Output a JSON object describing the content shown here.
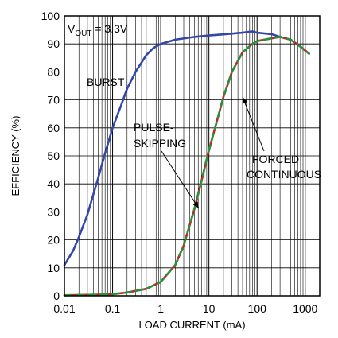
{
  "chart_data": {
    "type": "line",
    "xlabel": "LOAD CURRENT (mA)",
    "ylabel": "EFFICIENCY (%)",
    "xscale": "log",
    "xlim": [
      0.01,
      2000
    ],
    "ylim": [
      0,
      100
    ],
    "xticks": [
      {
        "value": 0.01,
        "label": "0.01"
      },
      {
        "value": 0.1,
        "label": "0.1"
      },
      {
        "value": 1,
        "label": "1"
      },
      {
        "value": 10,
        "label": "10"
      },
      {
        "value": 100,
        "label": "100"
      },
      {
        "value": 1000,
        "label": "1000"
      }
    ],
    "yticks": [
      0,
      10,
      20,
      30,
      40,
      50,
      60,
      70,
      80,
      90,
      100
    ],
    "grid": true,
    "annotations": {
      "vout_main": "V",
      "vout_sub": "OUT",
      "vout_value": " = 3.3V",
      "burst": "BURST",
      "pulse_line1": "PULSE-",
      "pulse_line2": "SKIPPING",
      "forced_line1": "FORCED",
      "forced_line2": "CONTINUOUS"
    },
    "series": [
      {
        "color": "#3347a8",
        "points": [
          [
            0.01,
            11
          ],
          [
            0.015,
            16
          ],
          [
            0.02,
            21
          ],
          [
            0.03,
            29
          ],
          [
            0.05,
            42
          ],
          [
            0.07,
            51
          ],
          [
            0.1,
            60
          ],
          [
            0.15,
            68
          ],
          [
            0.2,
            74
          ],
          [
            0.3,
            80
          ],
          [
            0.5,
            86
          ],
          [
            0.7,
            88.5
          ],
          [
            1,
            90
          ],
          [
            2,
            91.5
          ],
          [
            5,
            92.5
          ],
          [
            10,
            93
          ],
          [
            20,
            93.4
          ],
          [
            50,
            94
          ],
          [
            80,
            94.5
          ],
          [
            100,
            94
          ],
          [
            200,
            93.5
          ],
          [
            300,
            92.5
          ],
          [
            500,
            91.5
          ],
          [
            800,
            89
          ],
          [
            1200,
            86.5
          ]
        ]
      },
      {
        "color": "#cc2020",
        "points": [
          [
            0.01,
            0.2
          ],
          [
            0.05,
            0.4
          ],
          [
            0.1,
            0.6
          ],
          [
            0.2,
            1.2
          ],
          [
            0.5,
            2.5
          ],
          [
            1,
            5
          ],
          [
            2,
            11
          ],
          [
            3,
            18
          ],
          [
            5,
            31
          ],
          [
            7,
            41
          ],
          [
            10,
            52
          ],
          [
            15,
            63
          ],
          [
            20,
            71
          ],
          [
            30,
            80
          ],
          [
            50,
            87
          ],
          [
            80,
            90
          ],
          [
            100,
            91
          ],
          [
            200,
            92
          ],
          [
            300,
            92.5
          ],
          [
            500,
            91.5
          ],
          [
            800,
            89
          ],
          [
            1200,
            86.5
          ]
        ]
      },
      {
        "color": "#2a8f3a",
        "dashed": true,
        "points": [
          [
            0.01,
            0.2
          ],
          [
            0.05,
            0.4
          ],
          [
            0.1,
            0.6
          ],
          [
            0.2,
            1.2
          ],
          [
            0.5,
            2.5
          ],
          [
            1,
            5
          ],
          [
            2,
            11
          ],
          [
            3,
            18
          ],
          [
            5,
            31
          ],
          [
            7,
            41
          ],
          [
            10,
            52
          ],
          [
            15,
            63
          ],
          [
            20,
            71
          ],
          [
            30,
            80
          ],
          [
            50,
            87
          ],
          [
            80,
            90
          ],
          [
            100,
            91
          ],
          [
            200,
            92
          ],
          [
            300,
            92.5
          ],
          [
            500,
            91.5
          ],
          [
            800,
            89
          ],
          [
            1200,
            86.5
          ]
        ]
      }
    ]
  }
}
